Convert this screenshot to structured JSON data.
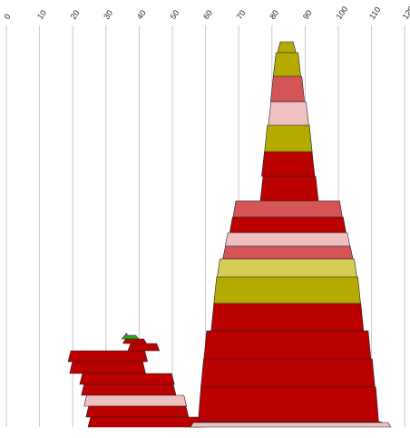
{
  "chart_data": {
    "type": "bar",
    "orientation": "horizontal",
    "stacking": "centered",
    "x_axis": {
      "position": "top",
      "ticks": [
        0,
        10,
        20,
        30,
        40,
        50,
        60,
        70,
        80,
        90,
        100,
        110,
        120
      ],
      "tick_labels": [
        "0",
        "10",
        "20",
        "30",
        "40",
        "50",
        "60",
        "70",
        "80",
        "90",
        "100",
        "110",
        "120"
      ],
      "xlim": [
        0,
        120
      ]
    },
    "grid": true,
    "legend": "none",
    "colors": {
      "dark_red": "#bb0000",
      "salmon": "#d45555",
      "pink": "#f0c0c0",
      "olive": "#b4aa00",
      "light_olive": "#d4cc55",
      "green": "#22aa22",
      "outline": "#222222"
    },
    "groups": [
      {
        "name": "",
        "bars": [
          {
            "left": 35.9,
            "right": 36.4,
            "color": "green"
          },
          {
            "left": 34.8,
            "right": 39.8,
            "color": "green"
          },
          {
            "left": 35.1,
            "right": 42.2,
            "color": "dark_red"
          },
          {
            "left": 36.6,
            "right": 46.1,
            "color": "dark_red"
          },
          {
            "left": 18.6,
            "right": 42.5,
            "color": "dark_red"
          },
          {
            "left": 19.1,
            "right": 41.9,
            "color": "dark_red"
          },
          {
            "left": 22.1,
            "right": 50.6,
            "color": "dark_red"
          },
          {
            "left": 22.6,
            "right": 51.1,
            "color": "dark_red"
          },
          {
            "left": 23.4,
            "right": 54.3,
            "color": "pink"
          },
          {
            "left": 24.0,
            "right": 54.9,
            "color": "dark_red"
          },
          {
            "left": 24.6,
            "right": 59.7,
            "color": "dark_red"
          }
        ]
      },
      {
        "name": "",
        "bars": [
          {
            "left": 81.7,
            "right": 87.2,
            "color": "olive"
          },
          {
            "left": 80.4,
            "right": 88.7,
            "color": "olive"
          },
          {
            "left": 79.6,
            "right": 89.8,
            "color": "salmon"
          },
          {
            "left": 78.9,
            "right": 91.1,
            "color": "pink"
          },
          {
            "left": 77.8,
            "right": 92.1,
            "color": "olive"
          },
          {
            "left": 76.9,
            "right": 92.9,
            "color": "dark_red"
          },
          {
            "left": 76.5,
            "right": 94.0,
            "color": "dark_red"
          },
          {
            "left": 68.3,
            "right": 101.2,
            "color": "salmon"
          },
          {
            "left": 67.3,
            "right": 102.3,
            "color": "dark_red"
          },
          {
            "left": 65.9,
            "right": 103.5,
            "color": "pink"
          },
          {
            "left": 65.2,
            "right": 104.4,
            "color": "salmon"
          },
          {
            "left": 63.5,
            "right": 105.6,
            "color": "light_olive"
          },
          {
            "left": 62.5,
            "right": 106.7,
            "color": "olive"
          },
          {
            "left": 61.7,
            "right": 107.6,
            "color": "dark_red"
          },
          {
            "left": 59.5,
            "right": 109.8,
            "color": "dark_red"
          },
          {
            "left": 58.6,
            "right": 111.0,
            "color": "dark_red"
          },
          {
            "left": 57.8,
            "right": 112.1,
            "color": "dark_red"
          },
          {
            "left": 57.1,
            "right": 113.4,
            "color": "dark_red"
          },
          {
            "left": 55.5,
            "right": 115.8,
            "color": "pink"
          }
        ]
      }
    ]
  }
}
